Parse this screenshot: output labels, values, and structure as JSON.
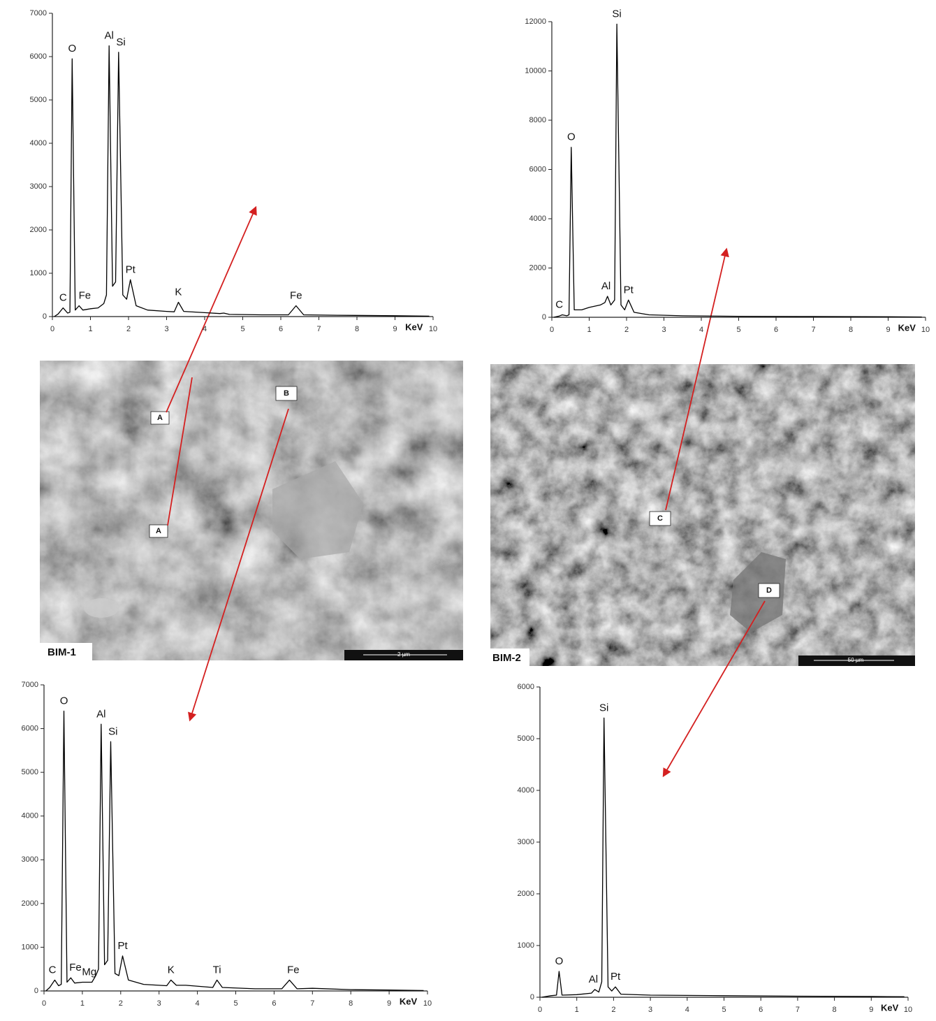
{
  "chart_data": [
    {
      "type": "line",
      "x_label": "KeV",
      "xlim": [
        0,
        10
      ],
      "xticks": [
        0,
        1,
        2,
        3,
        4,
        5,
        6,
        7,
        8,
        9,
        10
      ],
      "ylim": [
        0,
        7000
      ],
      "yticks": [
        0,
        1000,
        2000,
        3000,
        4000,
        5000,
        6000,
        7000
      ],
      "color": "#000000",
      "x": [
        0.05,
        0.15,
        0.28,
        0.4,
        0.46,
        0.52,
        0.6,
        0.7,
        0.8,
        1.0,
        1.2,
        1.35,
        1.42,
        1.49,
        1.58,
        1.66,
        1.74,
        1.85,
        1.95,
        2.05,
        2.2,
        2.5,
        3.0,
        3.2,
        3.31,
        3.45,
        4.0,
        4.4,
        4.5,
        4.65,
        5.5,
        6.2,
        6.4,
        6.6,
        7.5,
        9.0,
        9.9
      ],
      "values": [
        0,
        60,
        200,
        80,
        100,
        5950,
        150,
        250,
        150,
        180,
        200,
        300,
        500,
        6250,
        700,
        800,
        6100,
        500,
        400,
        850,
        250,
        150,
        120,
        110,
        330,
        120,
        90,
        70,
        80,
        50,
        40,
        40,
        250,
        40,
        30,
        20,
        10
      ],
      "annotations": [
        {
          "text": "C",
          "x": 0.28,
          "y": 200
        },
        {
          "text": "O",
          "x": 0.52,
          "y": 5950
        },
        {
          "text": "Fe",
          "x": 0.85,
          "y": 250
        },
        {
          "text": "Al",
          "x": 1.49,
          "y": 6250
        },
        {
          "text": "Si",
          "x": 1.8,
          "y": 6100
        },
        {
          "text": "Pt",
          "x": 2.05,
          "y": 850
        },
        {
          "text": "K",
          "x": 3.31,
          "y": 330
        },
        {
          "text": "Fe",
          "x": 6.4,
          "y": 250
        }
      ]
    },
    {
      "type": "line",
      "x_label": "KeV",
      "xlim": [
        0,
        10
      ],
      "xticks": [
        0,
        1,
        2,
        3,
        4,
        5,
        6,
        7,
        8,
        9,
        10
      ],
      "ylim": [
        0,
        12000
      ],
      "yticks": [
        0,
        2000,
        4000,
        6000,
        8000,
        10000,
        12000
      ],
      "color": "#000000",
      "x": [
        0.05,
        0.2,
        0.28,
        0.4,
        0.46,
        0.52,
        0.6,
        0.8,
        1.0,
        1.3,
        1.42,
        1.49,
        1.58,
        1.68,
        1.74,
        1.85,
        1.95,
        2.05,
        2.2,
        2.6,
        3.5,
        5,
        7,
        9,
        9.9
      ],
      "values": [
        0,
        50,
        100,
        60,
        100,
        6900,
        300,
        300,
        400,
        500,
        600,
        850,
        500,
        700,
        11900,
        500,
        300,
        700,
        200,
        100,
        60,
        40,
        30,
        20,
        10
      ],
      "annotations": [
        {
          "text": "C",
          "x": 0.2,
          "y": 100
        },
        {
          "text": "O",
          "x": 0.52,
          "y": 6900
        },
        {
          "text": "Al",
          "x": 1.45,
          "y": 850
        },
        {
          "text": "Si",
          "x": 1.74,
          "y": 11900
        },
        {
          "text": "Pt",
          "x": 2.05,
          "y": 700
        }
      ]
    },
    {
      "type": "line",
      "x_label": "KeV",
      "xlim": [
        0,
        10
      ],
      "xticks": [
        0,
        1,
        2,
        3,
        4,
        5,
        6,
        7,
        8,
        9,
        10
      ],
      "ylim": [
        0,
        7000
      ],
      "yticks": [
        0,
        1000,
        2000,
        3000,
        4000,
        5000,
        6000,
        7000
      ],
      "color": "#000000",
      "x": [
        0.05,
        0.15,
        0.28,
        0.38,
        0.45,
        0.52,
        0.6,
        0.7,
        0.8,
        1.0,
        1.15,
        1.25,
        1.35,
        1.42,
        1.49,
        1.58,
        1.66,
        1.74,
        1.85,
        1.95,
        2.05,
        2.2,
        2.6,
        3.2,
        3.31,
        3.45,
        3.7,
        4.4,
        4.51,
        4.65,
        5.5,
        6.2,
        6.4,
        6.6,
        7.0,
        8,
        9,
        9.9
      ],
      "values": [
        0,
        80,
        250,
        120,
        150,
        6400,
        200,
        300,
        180,
        200,
        200,
        200,
        350,
        500,
        6100,
        600,
        700,
        5700,
        400,
        350,
        800,
        250,
        150,
        120,
        250,
        130,
        130,
        80,
        250,
        80,
        50,
        50,
        250,
        50,
        60,
        30,
        20,
        10
      ],
      "annotations": [
        {
          "text": "C",
          "x": 0.22,
          "y": 250
        },
        {
          "text": "O",
          "x": 0.52,
          "y": 6400
        },
        {
          "text": "Fe",
          "x": 0.82,
          "y": 300
        },
        {
          "text": "Mg",
          "x": 1.18,
          "y": 200
        },
        {
          "text": "Al",
          "x": 1.49,
          "y": 6100
        },
        {
          "text": "Si",
          "x": 1.8,
          "y": 5700
        },
        {
          "text": "Pt",
          "x": 2.05,
          "y": 800
        },
        {
          "text": "K",
          "x": 3.31,
          "y": 250
        },
        {
          "text": "Ti",
          "x": 4.51,
          "y": 250
        },
        {
          "text": "Fe",
          "x": 6.5,
          "y": 250
        }
      ]
    },
    {
      "type": "line",
      "x_label": "KeV",
      "xlim": [
        0,
        10
      ],
      "xticks": [
        0,
        1,
        2,
        3,
        4,
        5,
        6,
        7,
        8,
        9,
        10
      ],
      "ylim": [
        0,
        6000
      ],
      "yticks": [
        0,
        1000,
        2000,
        3000,
        4000,
        5000,
        6000
      ],
      "color": "#000000",
      "x": [
        0.05,
        0.3,
        0.45,
        0.52,
        0.6,
        1.0,
        1.4,
        1.49,
        1.6,
        1.68,
        1.74,
        1.85,
        1.95,
        2.05,
        2.2,
        3,
        5,
        7,
        9,
        9.9
      ],
      "values": [
        0,
        30,
        40,
        500,
        40,
        50,
        80,
        150,
        100,
        300,
        5400,
        200,
        120,
        200,
        60,
        40,
        30,
        20,
        15,
        10
      ],
      "annotations": [
        {
          "text": "O",
          "x": 0.52,
          "y": 500
        },
        {
          "text": "Al",
          "x": 1.45,
          "y": 150
        },
        {
          "text": "Si",
          "x": 1.74,
          "y": 5400
        },
        {
          "text": "Pt",
          "x": 2.05,
          "y": 200
        }
      ]
    }
  ],
  "images": [
    {
      "label": "BIM-1",
      "scale": "2 µm",
      "markers": [
        "A",
        "B",
        "A"
      ]
    },
    {
      "label": "BIM-2",
      "scale": "50 µm",
      "markers": [
        "C",
        "D"
      ]
    }
  ]
}
